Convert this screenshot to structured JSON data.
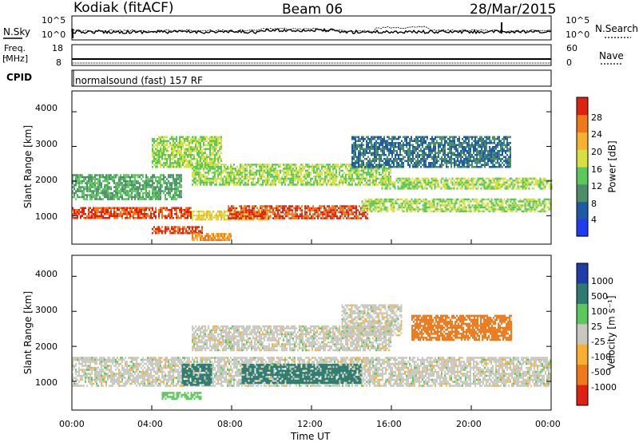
{
  "header": {
    "station": "Kodiak (fitACF)",
    "beam": "Beam 06",
    "date": "28/Mar/2015"
  },
  "top_panels": {
    "nsky_label": "N.Sky",
    "nsearch_label": "N.Search",
    "nsky_ticks_left": [
      "10^5",
      "10^0"
    ],
    "nsky_ticks_right": [
      "10^5",
      "10^0"
    ],
    "freq_label_1": "Freq.",
    "freq_label_2": "[MHz]",
    "freq_ticks": [
      "18",
      "8"
    ],
    "nave_label": "Nave",
    "nave_ticks": [
      "60",
      "0"
    ],
    "cpid_label": "CPID",
    "cpid_text": "normalsound (fast) 157 RF"
  },
  "chart_data": [
    {
      "type": "heatmap",
      "name": "power",
      "ylabel": "Slant Range [km]",
      "yticks": [
        "1000",
        "2000",
        "3000",
        "4000"
      ],
      "ylim": [
        180,
        4600
      ],
      "xlim": [
        0,
        24
      ],
      "colorbar_label": "Power [dB]",
      "colorbar_ticks": [
        "4",
        "8",
        "12",
        "16",
        "20",
        "24",
        "28"
      ],
      "colorbar_colors": [
        "#1e3cf0",
        "#1f5aa8",
        "#4c8e68",
        "#5ac85a",
        "#d8e040",
        "#f7b030",
        "#f07818",
        "#e02010"
      ],
      "bands": [
        {
          "x": [
            0,
            6
          ],
          "y": [
            950,
            1250
          ],
          "level": 28
        },
        {
          "x": [
            6,
            10
          ],
          "y": [
            900,
            1150
          ],
          "level": 20
        },
        {
          "x": [
            7.8,
            14.8
          ],
          "y": [
            900,
            1300
          ],
          "level": 28
        },
        {
          "x": [
            14.5,
            24
          ],
          "y": [
            1100,
            1500
          ],
          "level": 16
        },
        {
          "x": [
            0,
            5.5
          ],
          "y": [
            1500,
            2200
          ],
          "level": 12
        },
        {
          "x": [
            6,
            16
          ],
          "y": [
            1900,
            2500
          ],
          "level": 16
        },
        {
          "x": [
            15.5,
            24
          ],
          "y": [
            1800,
            2100
          ],
          "level": 16
        },
        {
          "x": [
            4,
            7.5
          ],
          "y": [
            2400,
            3300
          ],
          "level": 16
        },
        {
          "x": [
            14,
            22
          ],
          "y": [
            2400,
            3300
          ],
          "level": 8
        },
        {
          "x": [
            4,
            6.5
          ],
          "y": [
            500,
            700
          ],
          "level": 28
        },
        {
          "x": [
            6,
            8
          ],
          "y": [
            300,
            500
          ],
          "level": 24
        }
      ]
    },
    {
      "type": "heatmap",
      "name": "velocity",
      "ylabel": "Slant Range [km]",
      "yticks": [
        "1000",
        "2000",
        "3000",
        "4000"
      ],
      "ylim": [
        180,
        4600
      ],
      "xlim": [
        0,
        24
      ],
      "xticks": [
        "00:00",
        "04:00",
        "08:00",
        "12:00",
        "16:00",
        "20:00",
        "00:00"
      ],
      "xlabel": "Time UT",
      "colorbar_label": "Velocity [m s⁻¹]",
      "colorbar_ticks": [
        "1000",
        "500",
        "100",
        "25",
        "-25",
        "-100",
        "-500",
        "-1000"
      ],
      "colorbar_colors": [
        "#1f3ca8",
        "#2c7a70",
        "#5ac85a",
        "#c8c8c0",
        "#f7b030",
        "#f07818",
        "#e02010"
      ],
      "bands": [
        {
          "x": [
            0,
            24
          ],
          "y": [
            900,
            1700
          ],
          "level": 0
        },
        {
          "x": [
            5.5,
            7.0
          ],
          "y": [
            900,
            1500
          ],
          "level": 300
        },
        {
          "x": [
            8.5,
            14.5
          ],
          "y": [
            950,
            1500
          ],
          "level": 300
        },
        {
          "x": [
            6,
            16
          ],
          "y": [
            1900,
            2600
          ],
          "level": 0
        },
        {
          "x": [
            13.5,
            16.5
          ],
          "y": [
            2300,
            3200
          ],
          "level": 0
        },
        {
          "x": [
            17,
            22
          ],
          "y": [
            2200,
            2900
          ],
          "level": -300
        },
        {
          "x": [
            4.5,
            6.5
          ],
          "y": [
            500,
            700
          ],
          "level": 60
        }
      ]
    }
  ]
}
